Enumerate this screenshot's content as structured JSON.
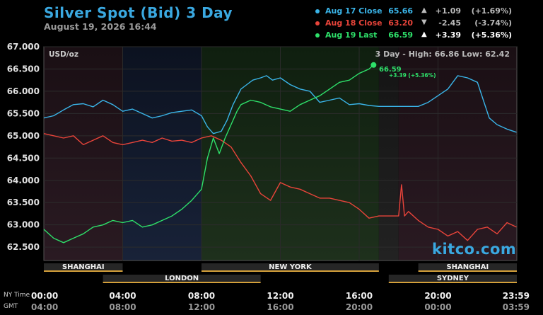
{
  "header": {
    "title": "Silver Spot (Bid) 3 Day",
    "timestamp": "August 19, 2026 16:44"
  },
  "legend": [
    {
      "name": "Aug 17 Close",
      "value": "65.66",
      "arrow": "▲",
      "change": "+1.09",
      "pct": "(+1.69%)",
      "color": "#3ab4e8"
    },
    {
      "name": "Aug 18 Close",
      "value": "63.20",
      "arrow": "▼",
      "change": "-2.45",
      "pct": "(-3.74%)",
      "color": "#e8443a"
    },
    {
      "name": "Aug 19 Last",
      "value": "66.59",
      "arrow": "▲",
      "change": "+3.39",
      "pct": "(+5.36%)",
      "color": "#2ee06a"
    }
  ],
  "plot": {
    "unit": "USD/oz",
    "high_low": "3 Day - High: 66.86  Low: 62.42",
    "last_value": "66.59",
    "last_change": "+3.39 (+5.36%)",
    "watermark": "kitco.com"
  },
  "sessions": [
    "SHANGHAI",
    "LONDON",
    "NEW YORK",
    "SHANGHAI",
    "SYDNEY"
  ],
  "axis": {
    "ny_label": "NY Time",
    "gmt_label": "GMT",
    "ny_ticks": [
      "00:00",
      "04:00",
      "08:00",
      "12:00",
      "16:00",
      "20:00",
      "23:59"
    ],
    "gmt_ticks": [
      "04:00",
      "08:00",
      "12:00",
      "16:00",
      "20:00",
      "00:00",
      "03:59"
    ]
  },
  "chart_data": {
    "type": "line",
    "ylim": [
      62.2,
      67.0
    ],
    "xlim": [
      0,
      24
    ],
    "y_ticks": [
      "67.000",
      "66.500",
      "66.000",
      "65.500",
      "65.000",
      "64.500",
      "64.000",
      "63.500",
      "63.000",
      "62.500"
    ],
    "series": [
      {
        "name": "Aug 17 Close",
        "color": "#3ab4e8",
        "x": [
          0,
          0.5,
          1,
          1.5,
          2,
          2.5,
          3,
          3.5,
          4,
          4.5,
          5,
          5.5,
          6,
          6.5,
          7,
          7.5,
          8,
          8.3,
          8.6,
          9,
          9.3,
          9.6,
          10,
          10.3,
          10.6,
          11,
          11.3,
          11.6,
          12,
          12.5,
          13,
          13.5,
          14,
          14.5,
          15,
          15.5,
          16,
          16.5,
          17,
          17.5,
          18,
          18.5,
          19,
          19.5,
          20,
          20.5,
          21,
          21.5,
          22,
          22.3,
          22.6,
          23,
          23.5,
          23.98
        ],
        "y": [
          65.4,
          65.45,
          65.58,
          65.7,
          65.72,
          65.65,
          65.8,
          65.7,
          65.55,
          65.6,
          65.5,
          65.4,
          65.45,
          65.52,
          65.55,
          65.58,
          65.45,
          65.2,
          65.05,
          65.1,
          65.35,
          65.7,
          66.05,
          66.15,
          66.25,
          66.3,
          66.35,
          66.25,
          66.3,
          66.15,
          66.05,
          66.0,
          65.75,
          65.8,
          65.85,
          65.7,
          65.72,
          65.68,
          65.66,
          65.66,
          65.66,
          65.66,
          65.66,
          65.75,
          65.9,
          66.05,
          66.35,
          66.3,
          66.2,
          65.8,
          65.4,
          65.25,
          65.15,
          65.08
        ]
      },
      {
        "name": "Aug 18 Close",
        "color": "#e8443a",
        "x": [
          0,
          0.5,
          1,
          1.5,
          2,
          2.5,
          3,
          3.5,
          4,
          4.5,
          5,
          5.5,
          6,
          6.5,
          7,
          7.5,
          8,
          8.5,
          9,
          9.5,
          10,
          10.5,
          11,
          11.5,
          12,
          12.5,
          13,
          13.5,
          14,
          14.5,
          15,
          15.5,
          16,
          16.5,
          17,
          17.5,
          18,
          18.15,
          18.3,
          18.5,
          19,
          19.5,
          20,
          20.5,
          21,
          21.5,
          22,
          22.5,
          23,
          23.5,
          23.98
        ],
        "y": [
          65.05,
          65.0,
          64.95,
          65.0,
          64.8,
          64.9,
          65.0,
          64.85,
          64.8,
          64.85,
          64.9,
          64.85,
          64.95,
          64.88,
          64.9,
          64.85,
          64.95,
          65.0,
          64.9,
          64.75,
          64.4,
          64.1,
          63.7,
          63.55,
          63.95,
          63.85,
          63.8,
          63.7,
          63.6,
          63.6,
          63.55,
          63.5,
          63.35,
          63.15,
          63.2,
          63.2,
          63.2,
          63.9,
          63.2,
          63.3,
          63.1,
          62.95,
          62.9,
          62.75,
          62.85,
          62.65,
          62.9,
          62.95,
          62.8,
          63.05,
          62.95
        ]
      },
      {
        "name": "Aug 19 Last",
        "color": "#2ee06a",
        "x": [
          0,
          0.5,
          1,
          1.5,
          2,
          2.5,
          3,
          3.5,
          4,
          4.5,
          5,
          5.5,
          6,
          6.5,
          7,
          7.5,
          8,
          8.3,
          8.6,
          8.9,
          9.2,
          9.5,
          9.8,
          10,
          10.5,
          11,
          11.5,
          12,
          12.5,
          13,
          13.5,
          14,
          14.5,
          15,
          15.5,
          16,
          16.5,
          16.73
        ],
        "y": [
          62.9,
          62.7,
          62.6,
          62.7,
          62.8,
          62.95,
          63.0,
          63.1,
          63.05,
          63.1,
          62.95,
          63.0,
          63.1,
          63.2,
          63.35,
          63.55,
          63.8,
          64.5,
          64.95,
          64.6,
          64.95,
          65.25,
          65.55,
          65.7,
          65.8,
          65.75,
          65.65,
          65.6,
          65.55,
          65.7,
          65.8,
          65.9,
          66.05,
          66.2,
          66.25,
          66.4,
          66.5,
          66.59
        ]
      }
    ]
  }
}
